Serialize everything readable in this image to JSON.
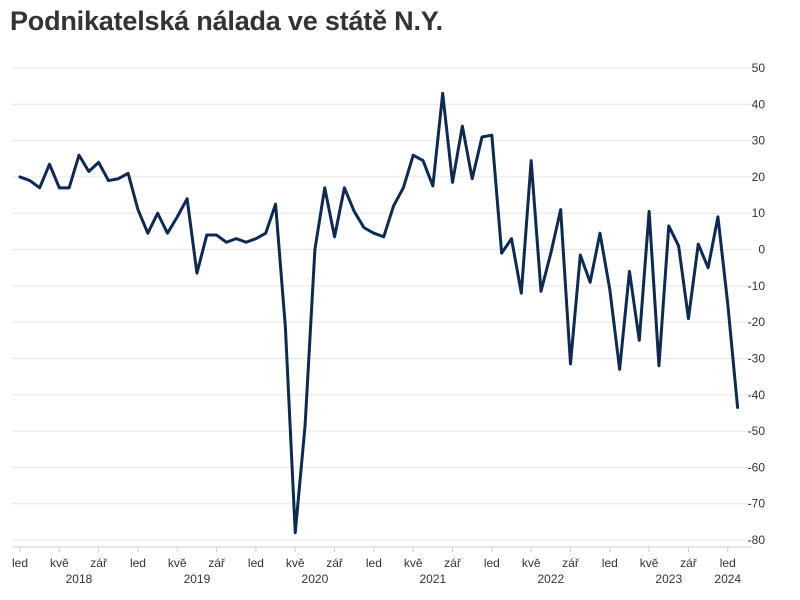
{
  "chart_data": {
    "type": "line",
    "title": "Podnikatelská nálada ve státě N.Y.",
    "xlabel": "",
    "ylabel": "",
    "ylim": [
      -80,
      50
    ],
    "y_ticks": [
      50,
      40,
      30,
      20,
      10,
      0,
      -10,
      -20,
      -30,
      -40,
      -50,
      -60,
      -70,
      -80
    ],
    "y_axis_side": "right",
    "grid": "horizontal",
    "legend": "none",
    "line_color": "#0c2a52",
    "x_start": "2018-01",
    "x_end": "2024-01",
    "month_tick_labels": [
      {
        "month": "2018-01",
        "label": "led"
      },
      {
        "month": "2018-05",
        "label": "kvě"
      },
      {
        "month": "2018-09",
        "label": "zář"
      },
      {
        "month": "2019-01",
        "label": "led"
      },
      {
        "month": "2019-05",
        "label": "kvě"
      },
      {
        "month": "2019-09",
        "label": "zář"
      },
      {
        "month": "2020-01",
        "label": "led"
      },
      {
        "month": "2020-05",
        "label": "kvě"
      },
      {
        "month": "2020-09",
        "label": "zář"
      },
      {
        "month": "2021-01",
        "label": "led"
      },
      {
        "month": "2021-05",
        "label": "kvě"
      },
      {
        "month": "2021-09",
        "label": "zář"
      },
      {
        "month": "2022-01",
        "label": "led"
      },
      {
        "month": "2022-05",
        "label": "kvě"
      },
      {
        "month": "2022-09",
        "label": "zář"
      },
      {
        "month": "2023-01",
        "label": "led"
      },
      {
        "month": "2023-05",
        "label": "kvě"
      },
      {
        "month": "2023-09",
        "label": "zář"
      },
      {
        "month": "2024-01",
        "label": "led"
      }
    ],
    "year_labels": [
      {
        "month": "2018-07",
        "label": "2018"
      },
      {
        "month": "2019-07",
        "label": "2019"
      },
      {
        "month": "2020-07",
        "label": "2020"
      },
      {
        "month": "2021-07",
        "label": "2021"
      },
      {
        "month": "2022-07",
        "label": "2022"
      },
      {
        "month": "2023-07",
        "label": "2023"
      },
      {
        "month": "2024-01",
        "label": "2024"
      }
    ],
    "series": [
      {
        "values": [
          {
            "x": "2018-01",
            "y": 20
          },
          {
            "x": "2018-02",
            "y": 19
          },
          {
            "x": "2018-03",
            "y": 17
          },
          {
            "x": "2018-04",
            "y": 23.5
          },
          {
            "x": "2018-05",
            "y": 17
          },
          {
            "x": "2018-06",
            "y": 17
          },
          {
            "x": "2018-07",
            "y": 26
          },
          {
            "x": "2018-08",
            "y": 21.5
          },
          {
            "x": "2018-09",
            "y": 24
          },
          {
            "x": "2018-10",
            "y": 19
          },
          {
            "x": "2018-11",
            "y": 19.5
          },
          {
            "x": "2018-12",
            "y": 21
          },
          {
            "x": "2019-01",
            "y": 11
          },
          {
            "x": "2019-02",
            "y": 4.5
          },
          {
            "x": "2019-03",
            "y": 10
          },
          {
            "x": "2019-04",
            "y": 4.5
          },
          {
            "x": "2019-05",
            "y": 9
          },
          {
            "x": "2019-06",
            "y": 14
          },
          {
            "x": "2019-07",
            "y": -6.5
          },
          {
            "x": "2019-08",
            "y": 4
          },
          {
            "x": "2019-09",
            "y": 4
          },
          {
            "x": "2019-10",
            "y": 2
          },
          {
            "x": "2019-11",
            "y": 3
          },
          {
            "x": "2019-12",
            "y": 2
          },
          {
            "x": "2020-01",
            "y": 3
          },
          {
            "x": "2020-02",
            "y": 4.5
          },
          {
            "x": "2020-03",
            "y": 12.5
          },
          {
            "x": "2020-04",
            "y": -21.5
          },
          {
            "x": "2020-05",
            "y": -78
          },
          {
            "x": "2020-06",
            "y": -48.5
          },
          {
            "x": "2020-07",
            "y": 0
          },
          {
            "x": "2020-08",
            "y": 17
          },
          {
            "x": "2020-09",
            "y": 3.5
          },
          {
            "x": "2020-10",
            "y": 17
          },
          {
            "x": "2020-11",
            "y": 10.5
          },
          {
            "x": "2020-12",
            "y": 6
          },
          {
            "x": "2021-01",
            "y": 4.5
          },
          {
            "x": "2021-02",
            "y": 3.5
          },
          {
            "x": "2021-03",
            "y": 12
          },
          {
            "x": "2021-04",
            "y": 17
          },
          {
            "x": "2021-05",
            "y": 26
          },
          {
            "x": "2021-06",
            "y": 24.5
          },
          {
            "x": "2021-07",
            "y": 17.5
          },
          {
            "x": "2021-08",
            "y": 43
          },
          {
            "x": "2021-09",
            "y": 18.5
          },
          {
            "x": "2021-10",
            "y": 34
          },
          {
            "x": "2021-11",
            "y": 19.5
          },
          {
            "x": "2021-12",
            "y": 31
          },
          {
            "x": "2022-01",
            "y": 31.5
          },
          {
            "x": "2022-02",
            "y": -1
          },
          {
            "x": "2022-03",
            "y": 3
          },
          {
            "x": "2022-04",
            "y": -12
          },
          {
            "x": "2022-05",
            "y": 24.5
          },
          {
            "x": "2022-06",
            "y": -11.5
          },
          {
            "x": "2022-07",
            "y": -1
          },
          {
            "x": "2022-08",
            "y": 11
          },
          {
            "x": "2022-09",
            "y": -31.5
          },
          {
            "x": "2022-10",
            "y": -1.5
          },
          {
            "x": "2022-11",
            "y": -9
          },
          {
            "x": "2022-12",
            "y": 4.5
          },
          {
            "x": "2023-01",
            "y": -11
          },
          {
            "x": "2023-02",
            "y": -33
          },
          {
            "x": "2023-03",
            "y": -6
          },
          {
            "x": "2023-04",
            "y": -25
          },
          {
            "x": "2023-05",
            "y": 10.5
          },
          {
            "x": "2023-06",
            "y": -32
          },
          {
            "x": "2023-07",
            "y": 6.5
          },
          {
            "x": "2023-08",
            "y": 1
          },
          {
            "x": "2023-09",
            "y": -19
          },
          {
            "x": "2023-10",
            "y": 1.5
          },
          {
            "x": "2023-11",
            "y": -5
          },
          {
            "x": "2023-12",
            "y": 9
          },
          {
            "x": "2024-01",
            "y": -15
          },
          {
            "x": "2024-02",
            "y": -43.5
          }
        ]
      }
    ]
  }
}
